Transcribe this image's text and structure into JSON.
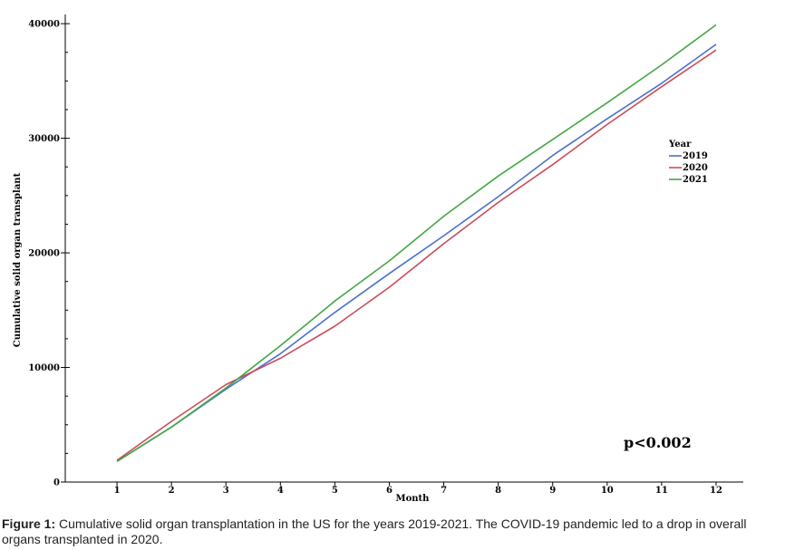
{
  "chart_data": {
    "type": "line",
    "xlabel": "Month",
    "ylabel": "Cumulative solid organ transplant",
    "x": [
      1,
      2,
      3,
      4,
      5,
      6,
      7,
      8,
      9,
      10,
      11,
      12
    ],
    "xticks": [
      "1",
      "2",
      "3",
      "4",
      "5",
      "6",
      "7",
      "8",
      "9",
      "10",
      "11",
      "12"
    ],
    "xlim": [
      0.05,
      12.5
    ],
    "ylim": [
      0,
      40800
    ],
    "yticks": [
      0,
      10000,
      20000,
      30000,
      40000
    ],
    "ytick_labels": [
      "0",
      "10000",
      "20000",
      "30000",
      "40000"
    ],
    "ygrid_minor_step": 2500,
    "legend_title": "Year",
    "legend_position": "right",
    "series": [
      {
        "name": "2019",
        "color": "#4a6fd0",
        "values": [
          1800,
          4800,
          8100,
          11200,
          14800,
          18200,
          21500,
          24900,
          28500,
          31700,
          34800,
          38200
        ]
      },
      {
        "name": "2020",
        "color": "#cc4b5a",
        "values": [
          1900,
          5300,
          8500,
          10800,
          13600,
          17000,
          20800,
          24400,
          27700,
          31200,
          34500,
          37700
        ]
      },
      {
        "name": "2021",
        "color": "#44a744",
        "values": [
          1800,
          4800,
          8200,
          11900,
          15800,
          19300,
          23200,
          26700,
          29900,
          33100,
          36400,
          39900
        ]
      }
    ],
    "annotations": [
      "p<0.002"
    ]
  },
  "caption": {
    "label": "Figure 1:",
    "text": " Cumulative solid organ transplantation in the US for the years 2019-2021. The COVID-19 pandemic led to a drop in overall organs transplanted in 2020."
  }
}
